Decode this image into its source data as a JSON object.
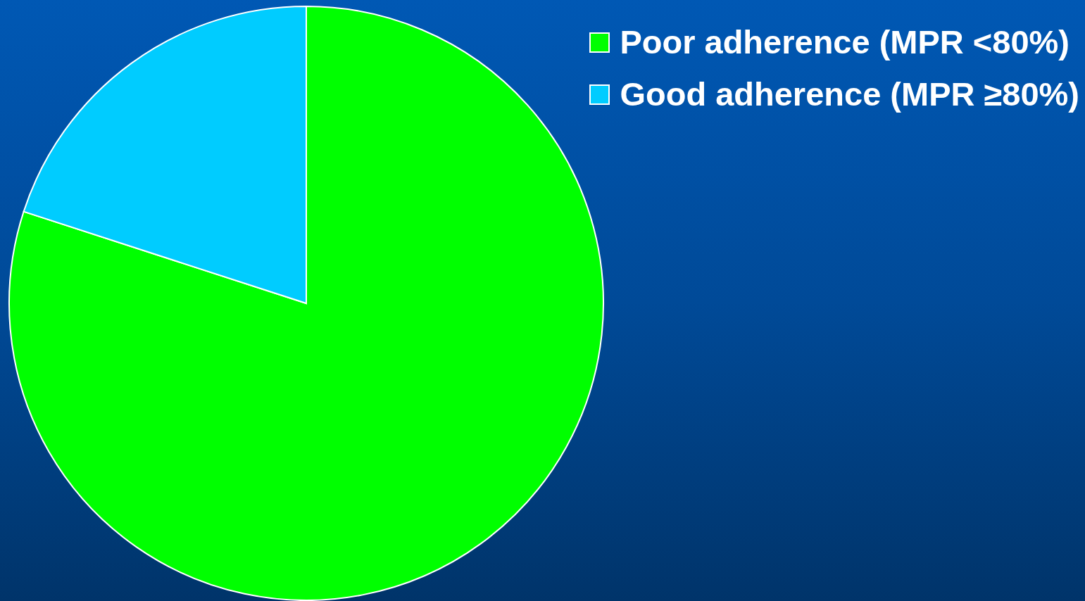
{
  "chart_data": {
    "type": "pie",
    "categories": [
      "Poor adherence (MPR <80%)",
      "Good adherence (MPR ≥80%)"
    ],
    "values": [
      80,
      20
    ],
    "colors": [
      "#00ff00",
      "#00ccff"
    ],
    "legend": "top right"
  }
}
